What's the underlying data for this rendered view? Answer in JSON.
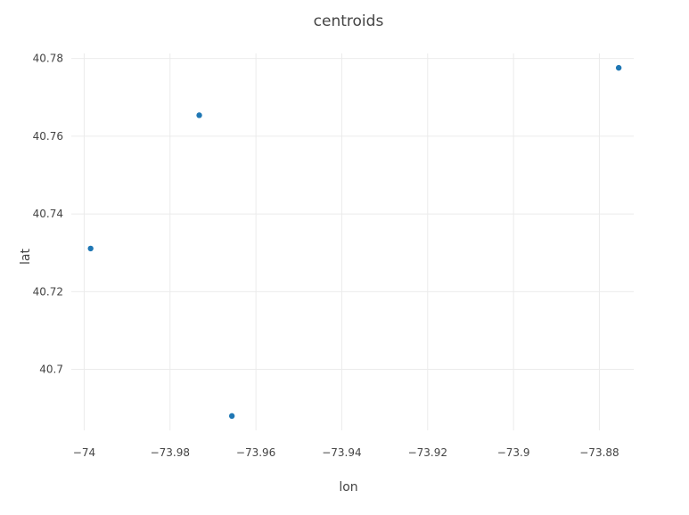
{
  "chart_data": {
    "type": "scatter",
    "title": "centroids",
    "xlabel": "lon",
    "ylabel": "lat",
    "xlim": [
      -74.003,
      -73.872
    ],
    "ylim": [
      40.6843,
      40.7813
    ],
    "x_ticks": [
      -74,
      -73.98,
      -73.96,
      -73.94,
      -73.92,
      -73.9,
      -73.88
    ],
    "x_tick_labels": [
      "−74",
      "−73.98",
      "−73.96",
      "−73.94",
      "−73.92",
      "−73.9",
      "−73.88"
    ],
    "y_ticks": [
      40.7,
      40.72,
      40.74,
      40.76,
      40.78
    ],
    "y_tick_labels": [
      "40.7",
      "40.72",
      "40.74",
      "40.76",
      "40.78"
    ],
    "grid": true,
    "series": [
      {
        "x": [
          -73.9985,
          -73.9732,
          -73.9656,
          -73.8755
        ],
        "y": [
          40.7311,
          40.7654,
          40.688,
          40.7776
        ],
        "color": "#1f77b4"
      }
    ]
  }
}
